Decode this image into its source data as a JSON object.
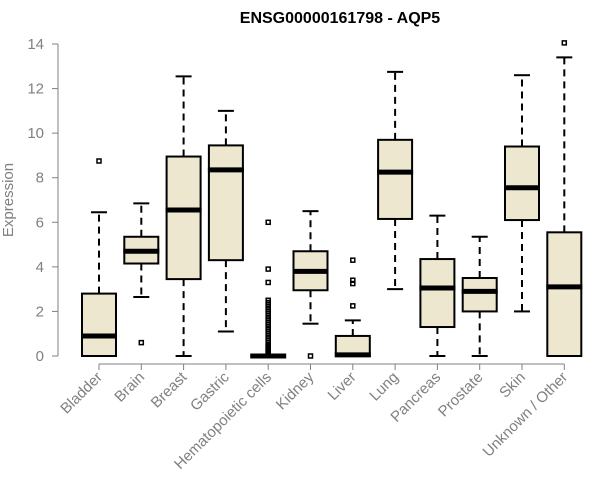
{
  "chart_data": {
    "type": "boxplot",
    "title": "ENSG00000161798 - AQP5",
    "xlabel": "",
    "ylabel": "Expression",
    "ylim": [
      0,
      14
    ],
    "yticks": [
      0,
      2,
      4,
      6,
      8,
      10,
      12,
      14
    ],
    "box_color": "#EDE7CF",
    "categories": [
      "Bladder",
      "Brain",
      "Breast",
      "Gastric",
      "Hematopoietic cells",
      "Kidney",
      "Liver",
      "Lung",
      "Pancreas",
      "Prostate",
      "Skin",
      "Unknown / Other"
    ],
    "series": [
      {
        "name": "Bladder",
        "min": 0.0,
        "q1": 0.0,
        "median": 0.9,
        "q3": 2.8,
        "max": 6.45,
        "outliers": [
          8.75
        ]
      },
      {
        "name": "Brain",
        "min": 2.65,
        "q1": 4.15,
        "median": 4.7,
        "q3": 5.35,
        "max": 6.85,
        "outliers": [
          0.6
        ]
      },
      {
        "name": "Breast",
        "min": 0.0,
        "q1": 3.45,
        "median": 6.55,
        "q3": 8.95,
        "max": 12.55,
        "outliers": []
      },
      {
        "name": "Gastric",
        "min": 1.1,
        "q1": 4.3,
        "median": 8.35,
        "q3": 9.45,
        "max": 11.0,
        "outliers": []
      },
      {
        "name": "Hematopoietic cells",
        "min": 0.0,
        "q1": 0.0,
        "median": 0.0,
        "q3": 0.0,
        "max": 0.0,
        "outliers": [
          0.1,
          0.15,
          0.2,
          0.25,
          0.3,
          0.35,
          0.4,
          0.45,
          0.5,
          0.6,
          0.7,
          0.8,
          0.9,
          1.0,
          1.1,
          1.2,
          1.3,
          1.4,
          1.5,
          1.6,
          1.7,
          1.8,
          1.9,
          2.0,
          2.1,
          2.2,
          2.3,
          2.4,
          2.5,
          3.3,
          3.9,
          6.0
        ]
      },
      {
        "name": "Kidney",
        "min": 1.45,
        "q1": 2.95,
        "median": 3.8,
        "q3": 4.7,
        "max": 6.5,
        "outliers": [
          0.0
        ]
      },
      {
        "name": "Liver",
        "min": 0.0,
        "q1": 0.0,
        "median": 0.05,
        "q3": 0.9,
        "max": 1.6,
        "outliers": [
          2.25,
          3.25,
          3.4,
          4.3
        ]
      },
      {
        "name": "Lung",
        "min": 3.0,
        "q1": 6.15,
        "median": 8.25,
        "q3": 9.7,
        "max": 12.75,
        "outliers": []
      },
      {
        "name": "Pancreas",
        "min": 0.0,
        "q1": 1.3,
        "median": 3.05,
        "q3": 4.35,
        "max": 6.3,
        "outliers": []
      },
      {
        "name": "Prostate",
        "min": 0.0,
        "q1": 2.0,
        "median": 2.9,
        "q3": 3.5,
        "max": 5.35,
        "outliers": []
      },
      {
        "name": "Skin",
        "min": 2.0,
        "q1": 6.1,
        "median": 7.55,
        "q3": 9.4,
        "max": 12.6,
        "outliers": []
      },
      {
        "name": "Unknown / Other",
        "min": 0.0,
        "q1": 0.0,
        "median": 3.1,
        "q3": 5.55,
        "max": 13.4,
        "outliers": [
          14.05
        ]
      }
    ]
  }
}
